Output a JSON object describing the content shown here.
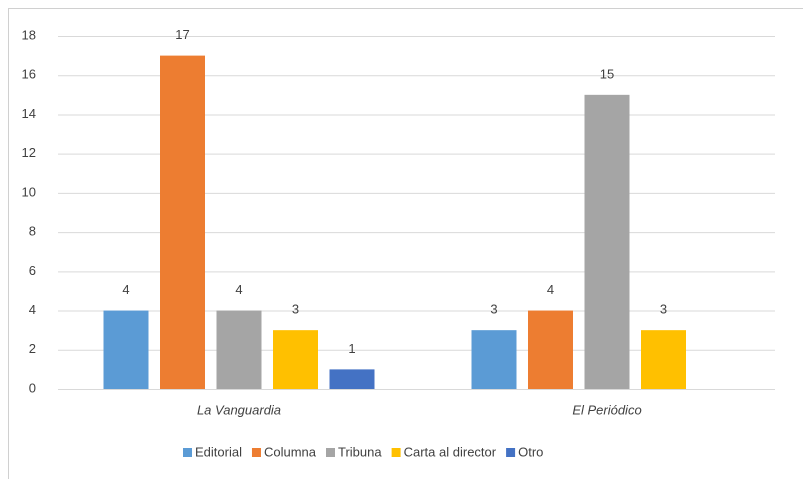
{
  "chart_data": {
    "type": "bar",
    "categories": [
      "La Vanguardia",
      "El Periódico"
    ],
    "series": [
      {
        "name": "Editorial",
        "color": "#5b9bd5",
        "values": [
          4,
          3
        ]
      },
      {
        "name": "Columna",
        "color": "#ed7d31",
        "values": [
          17,
          4
        ]
      },
      {
        "name": "Tribuna",
        "color": "#a5a5a5",
        "values": [
          4,
          15
        ]
      },
      {
        "name": "Carta al director",
        "color": "#ffc000",
        "values": [
          3,
          3
        ]
      },
      {
        "name": "Otro",
        "color": "#4472c4",
        "values": [
          1,
          null
        ]
      }
    ],
    "ylim": [
      0,
      18
    ],
    "yticks": [
      0,
      2,
      4,
      6,
      8,
      10,
      12,
      14,
      16,
      18
    ],
    "grid": true,
    "legend": "bottom"
  }
}
